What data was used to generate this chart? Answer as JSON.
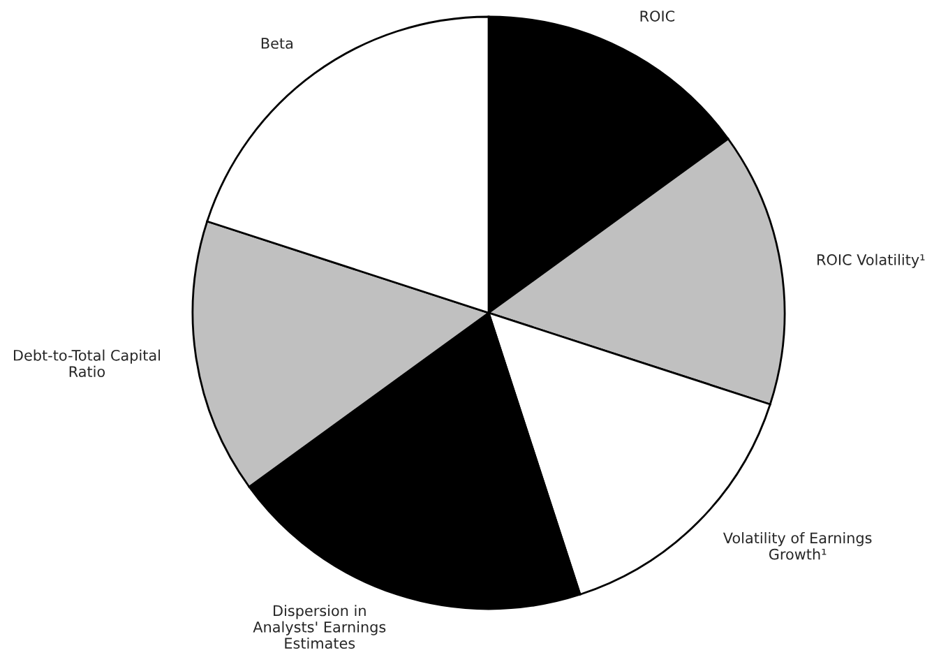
{
  "chart_data": {
    "type": "pie",
    "categories": [
      "ROIC",
      "ROIC Volatility¹",
      "Volatility of Earnings\nGrowth¹",
      "Dispersion in\nAnalysts' Earnings\nEstimates",
      "Debt-to-Total Capital\nRatio",
      "Beta"
    ],
    "values": [
      15,
      15,
      15,
      20,
      15,
      20
    ],
    "colors": [
      "#000000",
      "#c0c0c0",
      "#ffffff",
      "#000000",
      "#c0c0c0",
      "#ffffff"
    ],
    "legend": false
  }
}
